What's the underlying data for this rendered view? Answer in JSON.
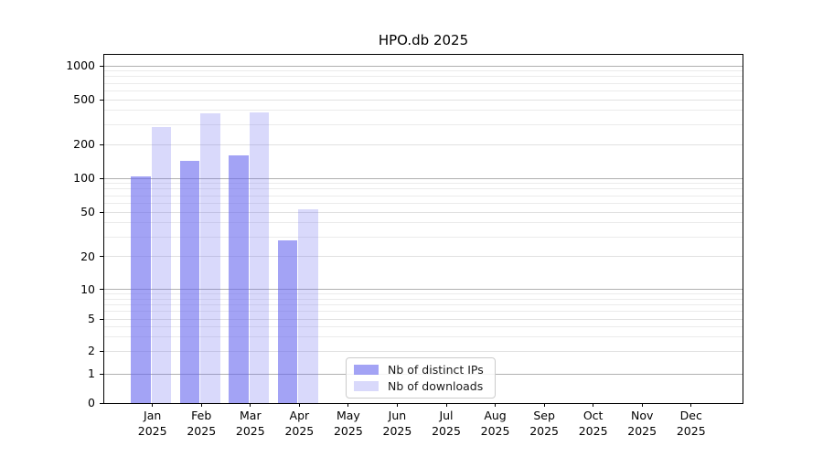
{
  "figure": {
    "title": "HPO.db 2025"
  },
  "chart_data": {
    "type": "bar",
    "title": "HPO.db 2025",
    "x_months": [
      "Jan",
      "Feb",
      "Mar",
      "Apr",
      "May",
      "Jun",
      "Jul",
      "Aug",
      "Sep",
      "Oct",
      "Nov",
      "Dec"
    ],
    "x_year": "2025",
    "series": [
      {
        "name": "Nb of distinct IPs",
        "color_rgba": "rgba(102,102,238,0.6)",
        "color_hex_on_white": "#a8a8f0",
        "values": [
          103,
          144,
          160,
          28,
          0,
          0,
          0,
          0,
          0,
          0,
          0,
          0
        ]
      },
      {
        "name": "Nb of downloads",
        "color_rgba": "rgba(102,102,238,0.25)",
        "color_hex_on_white": "#d9d9f7",
        "values": [
          285,
          380,
          385,
          53,
          0,
          0,
          0,
          0,
          0,
          0,
          0,
          0
        ]
      }
    ],
    "y_axis": {
      "scale": "symlog",
      "labeled_ticks": [
        0,
        1,
        2,
        5,
        10,
        20,
        50,
        100,
        200,
        500,
        1000
      ],
      "major_decade_ticks": [
        1,
        10,
        100,
        1000
      ],
      "ylim": [
        0,
        1250
      ]
    },
    "legend": {
      "position": "lower center",
      "entries": [
        "Nb of distinct IPs",
        "Nb of downloads"
      ]
    },
    "grid": {
      "major_color": "#b0b0b0",
      "labeled_minor_color": "#e1e1e1",
      "minor_color": "#ebebeb",
      "minor_gridlines": true
    }
  }
}
